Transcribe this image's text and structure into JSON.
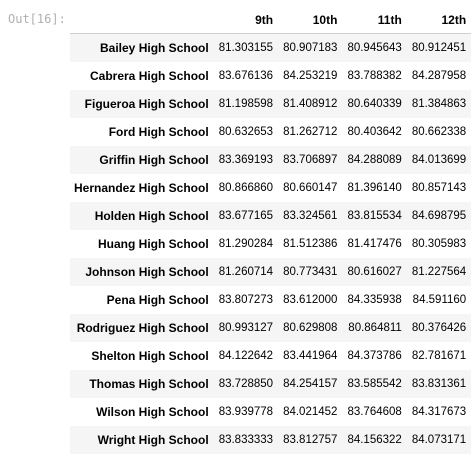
{
  "prompt": "Out[16]:",
  "columns": [
    "9th",
    "10th",
    "11th",
    "12th"
  ],
  "rows": [
    {
      "school": "Bailey High School",
      "values": [
        "81.303155",
        "80.907183",
        "80.945643",
        "80.912451"
      ]
    },
    {
      "school": "Cabrera High School",
      "values": [
        "83.676136",
        "84.253219",
        "83.788382",
        "84.287958"
      ]
    },
    {
      "school": "Figueroa High School",
      "values": [
        "81.198598",
        "81.408912",
        "80.640339",
        "81.384863"
      ]
    },
    {
      "school": "Ford High School",
      "values": [
        "80.632653",
        "81.262712",
        "80.403642",
        "80.662338"
      ]
    },
    {
      "school": "Griffin High School",
      "values": [
        "83.369193",
        "83.706897",
        "84.288089",
        "84.013699"
      ]
    },
    {
      "school": "Hernandez High School",
      "values": [
        "80.866860",
        "80.660147",
        "81.396140",
        "80.857143"
      ]
    },
    {
      "school": "Holden High School",
      "values": [
        "83.677165",
        "83.324561",
        "83.815534",
        "84.698795"
      ]
    },
    {
      "school": "Huang High School",
      "values": [
        "81.290284",
        "81.512386",
        "81.417476",
        "80.305983"
      ]
    },
    {
      "school": "Johnson High School",
      "values": [
        "81.260714",
        "80.773431",
        "80.616027",
        "81.227564"
      ]
    },
    {
      "school": "Pena High School",
      "values": [
        "83.807273",
        "83.612000",
        "84.335938",
        "84.591160"
      ]
    },
    {
      "school": "Rodriguez High School",
      "values": [
        "80.993127",
        "80.629808",
        "80.864811",
        "80.376426"
      ]
    },
    {
      "school": "Shelton High School",
      "values": [
        "84.122642",
        "83.441964",
        "84.373786",
        "82.781671"
      ]
    },
    {
      "school": "Thomas High School",
      "values": [
        "83.728850",
        "84.254157",
        "83.585542",
        "83.831361"
      ]
    },
    {
      "school": "Wilson High School",
      "values": [
        "83.939778",
        "84.021452",
        "83.764608",
        "84.317673"
      ]
    },
    {
      "school": "Wright High School",
      "values": [
        "83.833333",
        "83.812757",
        "84.156322",
        "84.073171"
      ]
    }
  ]
}
